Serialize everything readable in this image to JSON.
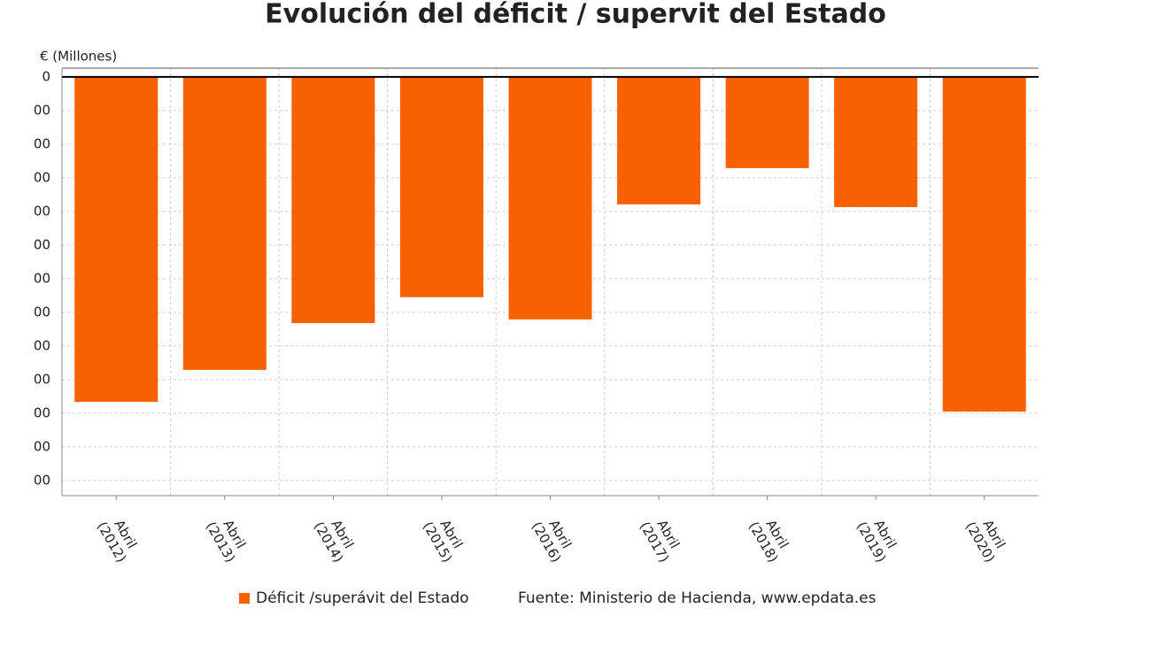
{
  "chart_data": {
    "type": "bar",
    "title": "Evolución del déficit / supervit del Estado",
    "y_label": "€ (Millones)",
    "categories": [
      "Abril (2012)",
      "Abril (2013)",
      "Abril (2014)",
      "Abril (2015)",
      "Abril (2016)",
      "Abril (2017)",
      "Abril (2018)",
      "Abril (2019)",
      "Abril (2020)"
    ],
    "series": [
      {
        "name": "Déficit /superávit del Estado",
        "color": "#f86100",
        "values": [
          -9660,
          -8710,
          -7320,
          -6550,
          -7210,
          -3790,
          -2710,
          -3870,
          -9950
        ]
      }
    ],
    "ylim": [
      -12450,
      260
    ],
    "yticks": [
      0,
      {
        "value": -1000,
        "label": "00"
      },
      {
        "value": -2000,
        "label": "00"
      },
      {
        "value": -3000,
        "label": "00"
      },
      {
        "value": -4000,
        "label": "00"
      },
      {
        "value": -5000,
        "label": "00"
      },
      {
        "value": -6000,
        "label": "00"
      },
      {
        "value": -7000,
        "label": "00"
      },
      {
        "value": -8000,
        "label": "00"
      },
      {
        "value": -9000,
        "label": "00"
      },
      {
        "value": -10000,
        "label": "00"
      },
      {
        "value": -11000,
        "label": "00"
      },
      {
        "value": -12000,
        "label": "00"
      }
    ],
    "grid": true,
    "source": "Fuente: Ministerio de Hacienda, www.epdata.es"
  }
}
